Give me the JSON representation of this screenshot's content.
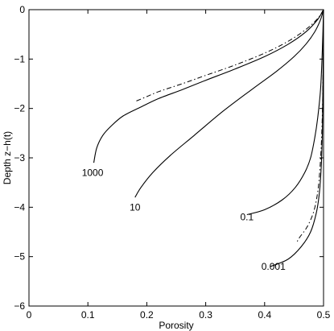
{
  "chart_data": {
    "type": "line",
    "xlabel": "Porosity",
    "ylabel": "Depth z−h(t)",
    "xlim": [
      0,
      0.5
    ],
    "ylim": [
      -6,
      0
    ],
    "xticks": [
      0,
      0.1,
      0.2,
      0.3,
      0.4,
      0.5
    ],
    "xtick_labels": [
      "0",
      "0.1",
      "0.2",
      "0.3",
      "0.4",
      "0.5"
    ],
    "yticks": [
      0,
      -1,
      -2,
      -3,
      -4,
      -5,
      -6
    ],
    "ytick_labels": [
      "0",
      "−1",
      "−2",
      "−3",
      "−4",
      "−5",
      "−6"
    ],
    "grid": false,
    "series": [
      {
        "name": "1000",
        "style": "solid",
        "x": [
          0.5,
          0.49,
          0.47,
          0.44,
          0.4,
          0.35,
          0.3,
          0.26,
          0.22,
          0.19,
          0.16,
          0.14,
          0.125,
          0.115,
          0.11
        ],
        "y": [
          0,
          -0.2,
          -0.45,
          -0.7,
          -0.95,
          -1.2,
          -1.43,
          -1.62,
          -1.8,
          -1.97,
          -2.15,
          -2.35,
          -2.55,
          -2.8,
          -3.1
        ]
      },
      {
        "name": "10",
        "style": "solid",
        "x": [
          0.5,
          0.495,
          0.485,
          0.47,
          0.45,
          0.42,
          0.38,
          0.33,
          0.28,
          0.24,
          0.21,
          0.19,
          0.18
        ],
        "y": [
          0,
          -0.2,
          -0.45,
          -0.7,
          -0.95,
          -1.25,
          -1.6,
          -2.05,
          -2.55,
          -2.95,
          -3.3,
          -3.6,
          -3.8
        ]
      },
      {
        "name": "0.1",
        "style": "solid",
        "x": [
          0.5,
          0.498,
          0.495,
          0.49,
          0.485,
          0.478,
          0.468,
          0.452,
          0.43,
          0.4,
          0.37
        ],
        "y": [
          0,
          -0.8,
          -1.6,
          -2.2,
          -2.6,
          -3.0,
          -3.3,
          -3.6,
          -3.85,
          -4.05,
          -4.15
        ]
      },
      {
        "name": "0.001",
        "style": "solid",
        "x": [
          0.5,
          0.499,
          0.498,
          0.496,
          0.493,
          0.488,
          0.478,
          0.462,
          0.44,
          0.41
        ],
        "y": [
          0,
          -1.5,
          -2.5,
          -3.2,
          -3.7,
          -4.1,
          -4.5,
          -4.8,
          -5.05,
          -5.2
        ]
      },
      {
        "name": "",
        "style": "dashdot",
        "x": [
          0.5,
          0.49,
          0.47,
          0.44,
          0.4,
          0.35,
          0.3,
          0.26,
          0.22,
          0.2,
          0.18
        ],
        "y": [
          0,
          -0.18,
          -0.4,
          -0.64,
          -0.88,
          -1.12,
          -1.33,
          -1.5,
          -1.66,
          -1.76,
          -1.86
        ]
      },
      {
        "name": "",
        "style": "dashdot",
        "x": [
          0.5,
          0.499,
          0.497,
          0.494,
          0.49,
          0.483,
          0.472,
          0.46,
          0.455
        ],
        "y": [
          0,
          -1.5,
          -2.5,
          -3.2,
          -3.7,
          -4.1,
          -4.4,
          -4.6,
          -4.7
        ]
      }
    ],
    "annotations": [
      {
        "text": "1000",
        "x": 0.108,
        "y": -3.3
      },
      {
        "text": "10",
        "x": 0.18,
        "y": -4.0
      },
      {
        "text": "0.1",
        "x": 0.37,
        "y": -4.2
      },
      {
        "text": "0.001",
        "x": 0.415,
        "y": -5.2
      }
    ]
  }
}
